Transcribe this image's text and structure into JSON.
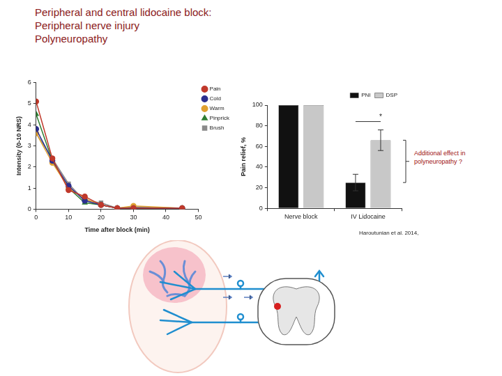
{
  "header": {
    "title": "Peripheral and central lidocaine block:",
    "lines": [
      "Peripheral nerve injury",
      "Polyneuropathy"
    ]
  },
  "source": "Haroutunian et al. 2014,",
  "chart_data": [
    {
      "type": "line",
      "x_label": "Time after block (min)",
      "y_label": "Intensity (0-10 NRS)",
      "x": [
        0,
        5,
        10,
        15,
        20,
        25,
        30,
        45
      ],
      "series": [
        {
          "name": "Pain",
          "color": "#c0392b",
          "marker": "circle",
          "values": [
            5.1,
            2.4,
            0.9,
            0.6,
            0.2,
            0.05,
            0.05,
            0.05
          ]
        },
        {
          "name": "Cold",
          "color": "#2c2f8f",
          "marker": "circle",
          "values": [
            3.8,
            2.3,
            1.1,
            0.4,
            0.2,
            0.05,
            0.05,
            0.05
          ]
        },
        {
          "name": "Warm",
          "color": "#e0a030",
          "marker": "circle",
          "values": [
            3.6,
            2.2,
            1.0,
            0.5,
            0.2,
            0.05,
            0.15,
            0.05
          ]
        },
        {
          "name": "Pinprick",
          "color": "#2e7d32",
          "marker": "triangle",
          "values": [
            4.5,
            2.3,
            1.0,
            0.3,
            0.2,
            0.05,
            0.05,
            0.05
          ]
        },
        {
          "name": "Brush",
          "color": "#8a8a8a",
          "marker": "square",
          "values": [
            3.6,
            2.4,
            1.2,
            0.4,
            0.3,
            0.05,
            0.1,
            0.05
          ]
        }
      ],
      "xlim": [
        0,
        50
      ],
      "xticks": [
        0,
        10,
        20,
        30,
        40,
        50
      ],
      "ylim": [
        0,
        6
      ],
      "yticks": [
        0,
        1,
        2,
        3,
        4,
        5,
        6
      ],
      "grid": false,
      "legend": "right"
    },
    {
      "type": "bar",
      "y_label": "Pain relief, %",
      "categories": [
        "Nerve block",
        "IV Lidocaine"
      ],
      "series": [
        {
          "name": "PNI",
          "color": "#111111",
          "values": [
            100,
            25
          ],
          "errors": [
            null,
            8
          ]
        },
        {
          "name": "DSP",
          "color": "#c8c8c8",
          "values": [
            100,
            66
          ],
          "errors": [
            null,
            10
          ]
        }
      ],
      "ylim": [
        0,
        100
      ],
      "yticks": [
        0,
        20,
        40,
        60,
        80,
        100
      ],
      "annotations": [
        "*",
        "Additional effect in polyneuropathy ?"
      ],
      "grid": false,
      "legend": "upper right"
    }
  ]
}
